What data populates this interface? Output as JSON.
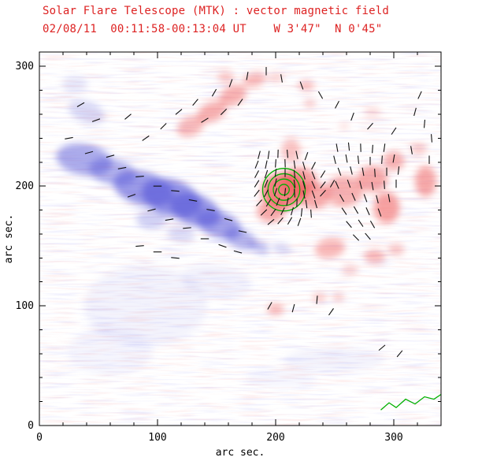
{
  "header": {
    "title": "Solar Flare Telescope (MTK) : vector magnetic field",
    "subtitle": "02/08/11  00:11:58-00:13:04 UT    W 3'47\"  N 0'45\""
  },
  "chart_data": {
    "type": "heatmap",
    "title": "Solar Flare Telescope (MTK) : vector magnetic field",
    "subtitle": "02/08/11  00:11:58-00:13:04 UT    W 3'47\"  N 0'45\"",
    "xlabel": "arc sec.",
    "ylabel": "arc sec.",
    "x_range": [
      0,
      340
    ],
    "y_range": [
      0,
      312
    ],
    "x_ticks": [
      0,
      100,
      200,
      300
    ],
    "y_ticks": [
      0,
      100,
      200,
      300
    ],
    "minor_tick_step": 20,
    "grid": false,
    "colors": {
      "title": "#dd2222",
      "axis": "#000000",
      "positive": "#ee5555",
      "negative": "#5858d8",
      "contour": "#00b000",
      "vector": "#101010"
    },
    "negative_blobs": [
      [
        40,
        262,
        16,
        9,
        -20,
        0.22
      ],
      [
        30,
        285,
        11,
        7,
        0,
        0.14
      ],
      [
        38,
        222,
        24,
        13,
        -10,
        0.5
      ],
      [
        62,
        212,
        20,
        11,
        -12,
        0.45
      ],
      [
        88,
        198,
        26,
        14,
        -15,
        0.6
      ],
      [
        112,
        190,
        26,
        15,
        -18,
        0.65
      ],
      [
        132,
        180,
        22,
        13,
        -20,
        0.62
      ],
      [
        152,
        168,
        20,
        11,
        -20,
        0.55
      ],
      [
        170,
        156,
        14,
        8,
        -22,
        0.45
      ],
      [
        186,
        149,
        9,
        5,
        -25,
        0.35
      ],
      [
        205,
        148,
        8,
        4,
        -10,
        0.25
      ],
      [
        95,
        172,
        13,
        8,
        0,
        0.28
      ],
      [
        120,
        160,
        12,
        7,
        -10,
        0.2
      ],
      [
        90,
        100,
        52,
        34,
        0,
        0.07
      ],
      [
        60,
        62,
        36,
        20,
        0,
        0.06
      ],
      [
        150,
        120,
        30,
        14,
        -8,
        0.08
      ],
      [
        250,
        55,
        42,
        10,
        0,
        0.07
      ],
      [
        205,
        40,
        30,
        8,
        0,
        0.05
      ]
    ],
    "positive_blobs": [
      [
        128,
        250,
        12,
        8,
        25,
        0.4
      ],
      [
        146,
        262,
        13,
        8,
        25,
        0.45
      ],
      [
        164,
        276,
        12,
        8,
        25,
        0.45
      ],
      [
        182,
        289,
        10,
        6,
        15,
        0.4
      ],
      [
        158,
        291,
        7,
        5,
        0,
        0.3
      ],
      [
        200,
        291,
        7,
        4,
        0,
        0.25
      ],
      [
        226,
        284,
        7,
        5,
        0,
        0.32
      ],
      [
        229,
        269,
        5,
        4,
        0,
        0.28
      ],
      [
        207,
        196,
        19,
        15,
        0,
        0.75
      ],
      [
        220,
        204,
        15,
        12,
        0,
        0.55
      ],
      [
        196,
        179,
        12,
        9,
        0,
        0.5
      ],
      [
        233,
        192,
        13,
        11,
        0,
        0.5
      ],
      [
        213,
        230,
        8,
        10,
        0,
        0.35
      ],
      [
        258,
        196,
        16,
        13,
        0,
        0.45
      ],
      [
        282,
        206,
        13,
        11,
        0,
        0.5
      ],
      [
        294,
        182,
        11,
        13,
        0,
        0.55
      ],
      [
        300,
        221,
        9,
        8,
        0,
        0.45
      ],
      [
        327,
        204,
        9,
        13,
        0,
        0.5
      ],
      [
        321,
        231,
        7,
        5,
        0,
        0.3
      ],
      [
        246,
        148,
        13,
        8,
        10,
        0.42
      ],
      [
        284,
        141,
        9,
        6,
        0,
        0.38
      ],
      [
        302,
        147,
        7,
        5,
        0,
        0.33
      ],
      [
        263,
        130,
        7,
        4,
        0,
        0.28
      ],
      [
        200,
        97,
        7,
        5,
        0,
        0.4
      ],
      [
        237,
        107,
        6,
        4,
        0,
        0.3
      ],
      [
        253,
        107,
        5,
        4,
        0,
        0.28
      ],
      [
        282,
        262,
        7,
        4,
        0,
        0.22
      ],
      [
        258,
        250,
        5,
        3,
        0,
        0.18
      ]
    ],
    "contour_set": {
      "center_x": 207,
      "center_y": 197,
      "radii_arcsec": [
        4.5,
        9,
        13.5,
        18
      ]
    },
    "limb_contour": [
      [
        289,
        13
      ],
      [
        296,
        19
      ],
      [
        302,
        15
      ],
      [
        310,
        22
      ],
      [
        318,
        18
      ],
      [
        326,
        24
      ],
      [
        334,
        22
      ],
      [
        340,
        26
      ]
    ],
    "vector_length_arcsec": 7,
    "field_vectors": [
      [
        186,
        226,
        75
      ],
      [
        194,
        226,
        82
      ],
      [
        202,
        227,
        88
      ],
      [
        210,
        227,
        95
      ],
      [
        218,
        226,
        102
      ],
      [
        226,
        225,
        70
      ],
      [
        184,
        218,
        68
      ],
      [
        192,
        218,
        78
      ],
      [
        200,
        219,
        86
      ],
      [
        208,
        219,
        92
      ],
      [
        216,
        218,
        98
      ],
      [
        224,
        217,
        106
      ],
      [
        232,
        217,
        62
      ],
      [
        184,
        210,
        62
      ],
      [
        192,
        210,
        72
      ],
      [
        200,
        211,
        82
      ],
      [
        208,
        211,
        90
      ],
      [
        216,
        210,
        96
      ],
      [
        224,
        209,
        104
      ],
      [
        232,
        209,
        112
      ],
      [
        240,
        210,
        58
      ],
      [
        184,
        202,
        58
      ],
      [
        192,
        202,
        68
      ],
      [
        200,
        203,
        78
      ],
      [
        216,
        202,
        98
      ],
      [
        224,
        201,
        106
      ],
      [
        232,
        201,
        114
      ],
      [
        240,
        201,
        52
      ],
      [
        248,
        202,
        60
      ],
      [
        184,
        194,
        52
      ],
      [
        192,
        194,
        62
      ],
      [
        200,
        195,
        72
      ],
      [
        208,
        195,
        84
      ],
      [
        216,
        194,
        94
      ],
      [
        224,
        193,
        102
      ],
      [
        232,
        193,
        110
      ],
      [
        240,
        194,
        48
      ],
      [
        186,
        186,
        48
      ],
      [
        194,
        186,
        58
      ],
      [
        202,
        187,
        68
      ],
      [
        210,
        187,
        78
      ],
      [
        218,
        186,
        88
      ],
      [
        226,
        185,
        98
      ],
      [
        234,
        185,
        106
      ],
      [
        190,
        178,
        44
      ],
      [
        198,
        178,
        54
      ],
      [
        206,
        179,
        64
      ],
      [
        214,
        179,
        74
      ],
      [
        222,
        178,
        84
      ],
      [
        230,
        177,
        94
      ],
      [
        196,
        170,
        40
      ],
      [
        204,
        171,
        50
      ],
      [
        212,
        171,
        60
      ],
      [
        220,
        170,
        70
      ],
      [
        252,
        232,
        100
      ],
      [
        262,
        233,
        96
      ],
      [
        272,
        232,
        92
      ],
      [
        282,
        231,
        86
      ],
      [
        292,
        232,
        82
      ],
      [
        250,
        222,
        104
      ],
      [
        260,
        223,
        100
      ],
      [
        270,
        222,
        96
      ],
      [
        280,
        221,
        90
      ],
      [
        290,
        222,
        86
      ],
      [
        300,
        223,
        80
      ],
      [
        254,
        212,
        110
      ],
      [
        264,
        213,
        104
      ],
      [
        274,
        212,
        100
      ],
      [
        284,
        211,
        94
      ],
      [
        294,
        212,
        90
      ],
      [
        304,
        213,
        84
      ],
      [
        252,
        201,
        114
      ],
      [
        262,
        202,
        110
      ],
      [
        272,
        201,
        104
      ],
      [
        282,
        200,
        100
      ],
      [
        292,
        201,
        94
      ],
      [
        302,
        202,
        90
      ],
      [
        256,
        190,
        120
      ],
      [
        266,
        191,
        114
      ],
      [
        276,
        190,
        110
      ],
      [
        286,
        189,
        104
      ],
      [
        296,
        190,
        100
      ],
      [
        258,
        179,
        124
      ],
      [
        268,
        180,
        120
      ],
      [
        278,
        179,
        114
      ],
      [
        288,
        178,
        110
      ],
      [
        262,
        168,
        130
      ],
      [
        272,
        169,
        124
      ],
      [
        282,
        168,
        120
      ],
      [
        268,
        157,
        134
      ],
      [
        278,
        158,
        130
      ],
      [
        60,
        225,
        15
      ],
      [
        70,
        215,
        10
      ],
      [
        85,
        208,
        5
      ],
      [
        100,
        200,
        0
      ],
      [
        115,
        196,
        -5
      ],
      [
        130,
        188,
        -10
      ],
      [
        145,
        180,
        -10
      ],
      [
        160,
        172,
        -15
      ],
      [
        172,
        162,
        -12
      ],
      [
        95,
        180,
        15
      ],
      [
        110,
        172,
        10
      ],
      [
        125,
        165,
        5
      ],
      [
        140,
        156,
        0
      ],
      [
        78,
        192,
        20
      ],
      [
        155,
        150,
        -20
      ],
      [
        168,
        145,
        -15
      ],
      [
        118,
        262,
        40
      ],
      [
        132,
        270,
        50
      ],
      [
        148,
        278,
        60
      ],
      [
        162,
        286,
        70
      ],
      [
        176,
        292,
        80
      ],
      [
        192,
        296,
        90
      ],
      [
        140,
        255,
        32
      ],
      [
        156,
        262,
        45
      ],
      [
        170,
        270,
        55
      ],
      [
        205,
        290,
        100
      ],
      [
        222,
        284,
        110
      ],
      [
        238,
        276,
        120
      ],
      [
        252,
        268,
        62
      ],
      [
        265,
        258,
        70
      ],
      [
        280,
        250,
        48
      ],
      [
        300,
        246,
        56
      ],
      [
        315,
        230,
        100
      ],
      [
        318,
        262,
        75
      ],
      [
        326,
        252,
        85
      ],
      [
        332,
        240,
        95
      ],
      [
        322,
        276,
        65
      ],
      [
        330,
        222,
        90
      ],
      [
        25,
        240,
        10
      ],
      [
        35,
        268,
        30
      ],
      [
        48,
        255,
        20
      ],
      [
        42,
        228,
        15
      ],
      [
        90,
        240,
        35
      ],
      [
        105,
        250,
        45
      ],
      [
        75,
        258,
        40
      ],
      [
        195,
        100,
        60
      ],
      [
        215,
        98,
        75
      ],
      [
        235,
        105,
        85
      ],
      [
        247,
        95,
        55
      ],
      [
        290,
        65,
        40
      ],
      [
        305,
        60,
        50
      ],
      [
        85,
        150,
        5
      ],
      [
        100,
        145,
        0
      ],
      [
        115,
        140,
        -5
      ]
    ]
  }
}
